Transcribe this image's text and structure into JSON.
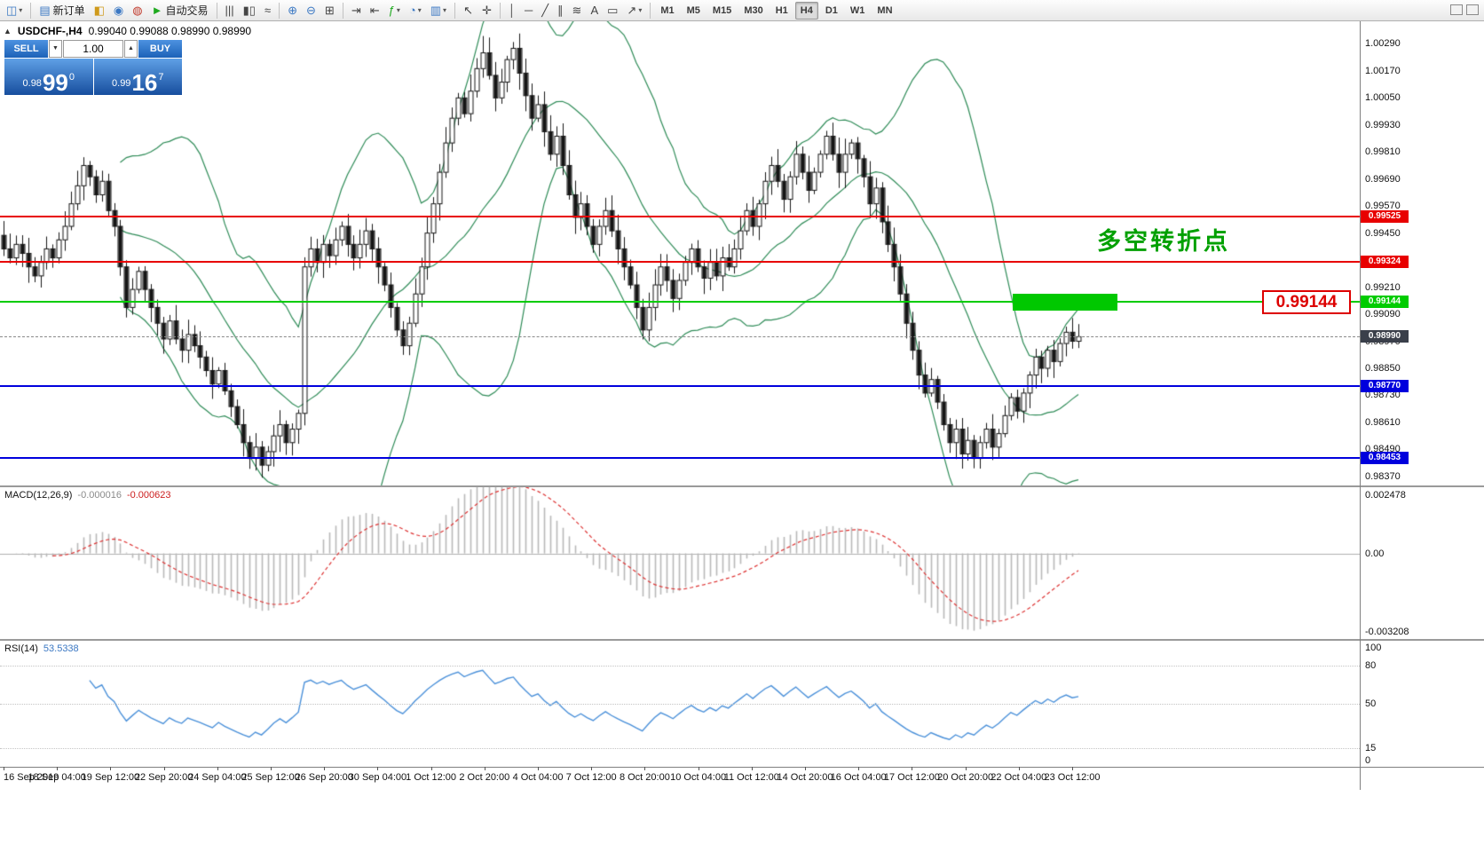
{
  "toolbar": {
    "new_order_label": "新订单",
    "autotrading_label": "自动交易",
    "dropdown_arrow": "▾",
    "timeframes": [
      "M1",
      "M5",
      "M15",
      "M30",
      "H1",
      "H4",
      "D1",
      "W1",
      "MN"
    ],
    "active_timeframe": "H4",
    "icon_buttons": {
      "new_chart": "◫",
      "new_order": "▤",
      "market_watch": "◧",
      "data_window": "◉",
      "navigator": "◍",
      "autotrading": "►",
      "bar_chart": "|||",
      "candlestick_chart": "▮▯",
      "line_chart": "≈",
      "zoom_in": "⊕",
      "zoom_out": "⊖",
      "tile_windows": "⊞",
      "auto_scroll": "⇥",
      "chart_shift": "⇤",
      "indicators": "ƒ",
      "periods": "◔",
      "templates": "▥",
      "cursor": "↖",
      "crosshair": "✛",
      "vertical_line": "│",
      "horizontal_line": "─",
      "trendline": "╱",
      "channel": "∥",
      "fibonacci": "≋",
      "text": "A",
      "text_label": "▭",
      "arrows": "↗"
    }
  },
  "chart": {
    "collapse_icon": "▲",
    "symbol_title": "USDCHF-,H4",
    "ohlc_text": "0.99040 0.99088 0.98990 0.98990",
    "annotation": "多空转折点",
    "annotation_color": "#00a000",
    "callout_price": "0.99144",
    "one_click": {
      "sell_label": "SELL",
      "buy_label": "BUY",
      "lot_value": "1.00",
      "down_arrow": "▼",
      "up_arrow": "▲",
      "bid_small": "0.98",
      "bid_big": "99",
      "bid_sup": "0",
      "ask_small": "0.99",
      "ask_big": "16",
      "ask_sup": "7"
    }
  },
  "macd": {
    "name": "MACD(12,26,9)",
    "value1": "-0.000016",
    "value2": "-0.000623",
    "scale_labels": [
      "0.002478",
      "0.00",
      "-0.003208"
    ],
    "histogram_color": "#b8b8b8",
    "signal_color": "#dd3333"
  },
  "rsi": {
    "name": "RSI(14)",
    "value": "53.5338",
    "levels": [
      "100",
      "80",
      "50",
      "15",
      "0"
    ],
    "line_color": "#4a90d9"
  },
  "chart_data": {
    "type": "candlestick",
    "symbol": "USDCHF-",
    "timeframe": "H4",
    "title": "USDCHF-,H4",
    "last_ohlc": {
      "open": 0.9904,
      "high": 0.99088,
      "low": 0.9899,
      "close": 0.9899
    },
    "y_axis": {
      "min": 0.9837,
      "max": 1.0029,
      "ticks": [
        "1.00290",
        "1.00170",
        "1.00050",
        "0.99930",
        "0.99810",
        "0.99690",
        "0.99570",
        "0.99450",
        "0.99330",
        "0.99210",
        "0.99090",
        "0.98970",
        "0.98850",
        "0.98730",
        "0.98610",
        "0.98490",
        "0.98370"
      ]
    },
    "x_labels": [
      "16 Sep 2019",
      "18 Sep 04:00",
      "19 Sep 12:00",
      "22 Sep 20:00",
      "24 Sep 04:00",
      "25 Sep 12:00",
      "26 Sep 20:00",
      "30 Sep 04:00",
      "1 Oct 12:00",
      "2 Oct 20:00",
      "4 Oct 04:00",
      "7 Oct 12:00",
      "8 Oct 20:00",
      "10 Oct 04:00",
      "11 Oct 12:00",
      "14 Oct 20:00",
      "16 Oct 04:00",
      "17 Oct 12:00",
      "20 Oct 20:00",
      "22 Oct 04:00",
      "23 Oct 12:00"
    ],
    "closes": [
      0.9938,
      0.9934,
      0.994,
      0.9936,
      0.993,
      0.9926,
      0.9932,
      0.9938,
      0.9934,
      0.9942,
      0.9948,
      0.9958,
      0.9966,
      0.9975,
      0.997,
      0.9962,
      0.9968,
      0.9955,
      0.9948,
      0.993,
      0.9912,
      0.992,
      0.9928,
      0.992,
      0.9912,
      0.9905,
      0.9898,
      0.9906,
      0.9898,
      0.9893,
      0.99,
      0.9895,
      0.989,
      0.9884,
      0.9878,
      0.9884,
      0.9875,
      0.9868,
      0.986,
      0.9852,
      0.9845,
      0.985,
      0.9842,
      0.9848,
      0.9855,
      0.986,
      0.9852,
      0.9858,
      0.9865,
      0.993,
      0.9938,
      0.9932,
      0.994,
      0.9935,
      0.9942,
      0.9948,
      0.994,
      0.9934,
      0.994,
      0.9946,
      0.9938,
      0.993,
      0.9922,
      0.9912,
      0.9902,
      0.9895,
      0.9905,
      0.9918,
      0.993,
      0.9945,
      0.9958,
      0.9972,
      0.9985,
      0.9996,
      1.0005,
      0.9998,
      1.0008,
      1.0018,
      1.0025,
      1.0015,
      1.0005,
      1.0012,
      1.0022,
      1.0027,
      1.0016,
      1.0006,
      0.9996,
      1.0002,
      0.999,
      0.998,
      0.9988,
      0.9975,
      0.9962,
      0.9952,
      0.9958,
      0.9948,
      0.994,
      0.9948,
      0.9955,
      0.9946,
      0.9938,
      0.993,
      0.9922,
      0.9912,
      0.9902,
      0.9912,
      0.9922,
      0.993,
      0.9924,
      0.9916,
      0.9924,
      0.9932,
      0.9938,
      0.993,
      0.9925,
      0.9932,
      0.9926,
      0.9934,
      0.993,
      0.9938,
      0.9946,
      0.9955,
      0.9948,
      0.9958,
      0.9968,
      0.9975,
      0.9968,
      0.996,
      0.997,
      0.998,
      0.9972,
      0.9964,
      0.9972,
      0.998,
      0.9988,
      0.998,
      0.9972,
      0.998,
      0.9985,
      0.9978,
      0.997,
      0.9958,
      0.9965,
      0.995,
      0.994,
      0.993,
      0.9918,
      0.9905,
      0.9893,
      0.9882,
      0.9874,
      0.988,
      0.987,
      0.986,
      0.9852,
      0.9858,
      0.9847,
      0.9853,
      0.9845,
      0.9852,
      0.9858,
      0.985,
      0.9856,
      0.9864,
      0.9872,
      0.9866,
      0.9874,
      0.9882,
      0.989,
      0.9885,
      0.9893,
      0.9888,
      0.9896,
      0.9901,
      0.9897,
      0.9899
    ],
    "candle_colors": {
      "bull": "#ffffff",
      "bear": "#151515",
      "outline": "#151515"
    },
    "overlays": {
      "bollinger": {
        "period": 20,
        "deviation": 2,
        "color": "#2e8b57"
      },
      "hlines": [
        {
          "price": 0.99525,
          "label": "0.99525",
          "color": "#e80000",
          "width": 2
        },
        {
          "price": 0.99324,
          "label": "0.99324",
          "color": "#e80000",
          "width": 2
        },
        {
          "price": 0.99144,
          "label": "0.99144",
          "color": "#00cc00",
          "width": 2
        },
        {
          "price": 0.9877,
          "label": "0.98770",
          "color": "#0000dd",
          "width": 2
        },
        {
          "price": 0.98453,
          "label": "0.98453",
          "color": "#0000dd",
          "width": 2
        }
      ],
      "current": {
        "price": 0.9899,
        "label": "0.98990",
        "color": "#3a3f4a"
      },
      "rect": {
        "price_top": 0.9918,
        "price_bottom": 0.99106,
        "x1_frac": 0.745,
        "x2_frac": 0.822,
        "color": "#00c800"
      }
    },
    "macd": {
      "params": [
        12,
        26,
        9
      ],
      "last_main": -1.6e-05,
      "last_signal": -0.000623,
      "scale": [
        0.002478,
        0,
        -0.003208
      ]
    },
    "rsi": {
      "period": 14,
      "last_value": 53.5338,
      "levels": [
        100,
        80,
        50,
        15,
        0
      ]
    }
  }
}
